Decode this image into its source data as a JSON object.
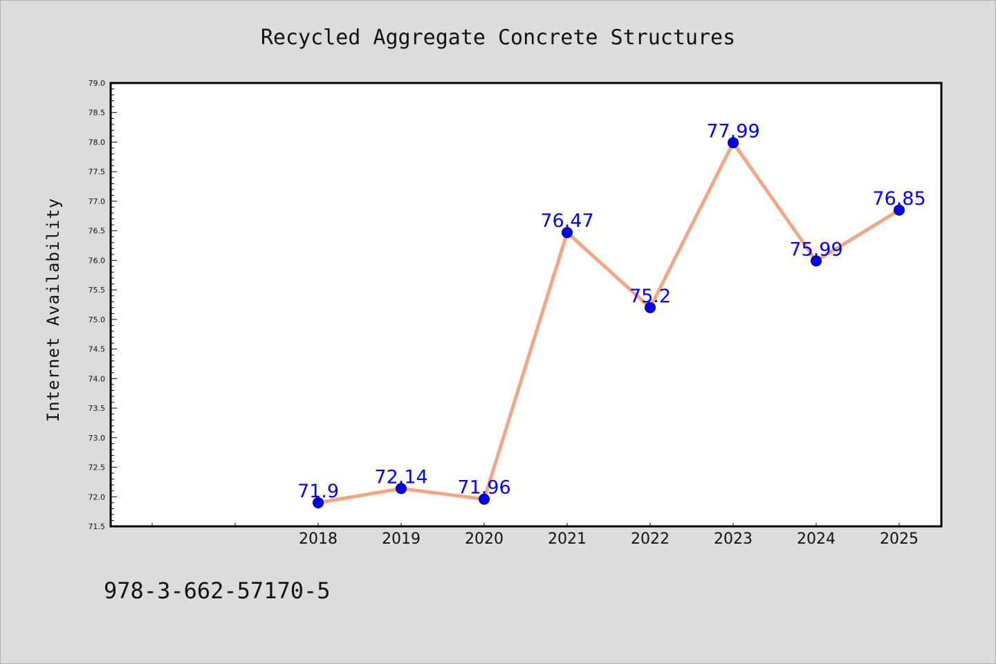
{
  "chart_data": {
    "type": "line",
    "title": "Recycled Aggregate Concrete Structures",
    "xlabel": "",
    "ylabel": "Internet Availability",
    "x": [
      "2018",
      "2019",
      "2020",
      "2021",
      "2022",
      "2023",
      "2024",
      "2025"
    ],
    "series": [
      {
        "values": [
          71.9,
          72.14,
          71.96,
          76.47,
          75.2,
          77.99,
          75.99,
          76.85
        ],
        "labels": [
          "71.9",
          "72.14",
          "71.96",
          "76.47",
          "75.2",
          "77.99",
          "75.99",
          "76.85"
        ]
      }
    ],
    "ylim": [
      71.5,
      79.0
    ],
    "yticks": [
      "71.5",
      "72.0",
      "72.5",
      "73.0",
      "73.5",
      "74.0",
      "74.5",
      "75.0",
      "75.5",
      "76.0",
      "76.5",
      "77.0",
      "77.5",
      "78.0",
      "78.5",
      "79.0"
    ],
    "grid": false,
    "colors": {
      "line": "#f4a582",
      "marker": "#0000ff",
      "label": "#0000ff",
      "background": "#dcdcdc",
      "plot_background": "#ffffff"
    }
  },
  "footer": {
    "isbn": "978-3-662-57170-5"
  }
}
